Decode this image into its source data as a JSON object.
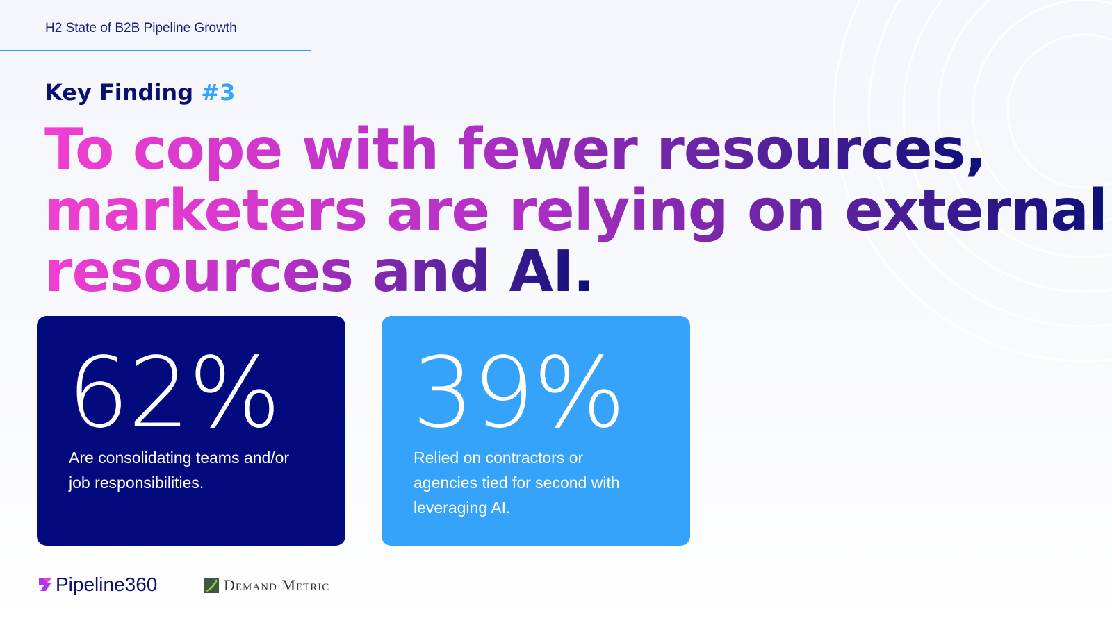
{
  "header": {
    "title": "H2 State of B2B Pipeline Growth"
  },
  "finding": {
    "label": "Key Finding",
    "number": "#3"
  },
  "headline": {
    "lines": [
      "To cope with fewer resources,",
      "marketers are relying on external",
      "resources and AI."
    ]
  },
  "cards": [
    {
      "stat": "62%",
      "description": "Are consolidating teams and/or job responsibilities."
    },
    {
      "stat": "39%",
      "description": "Relied on contractors or agencies tied for second with leveraging AI."
    }
  ],
  "logos": [
    "Pipeline360",
    "Demand Metric"
  ]
}
